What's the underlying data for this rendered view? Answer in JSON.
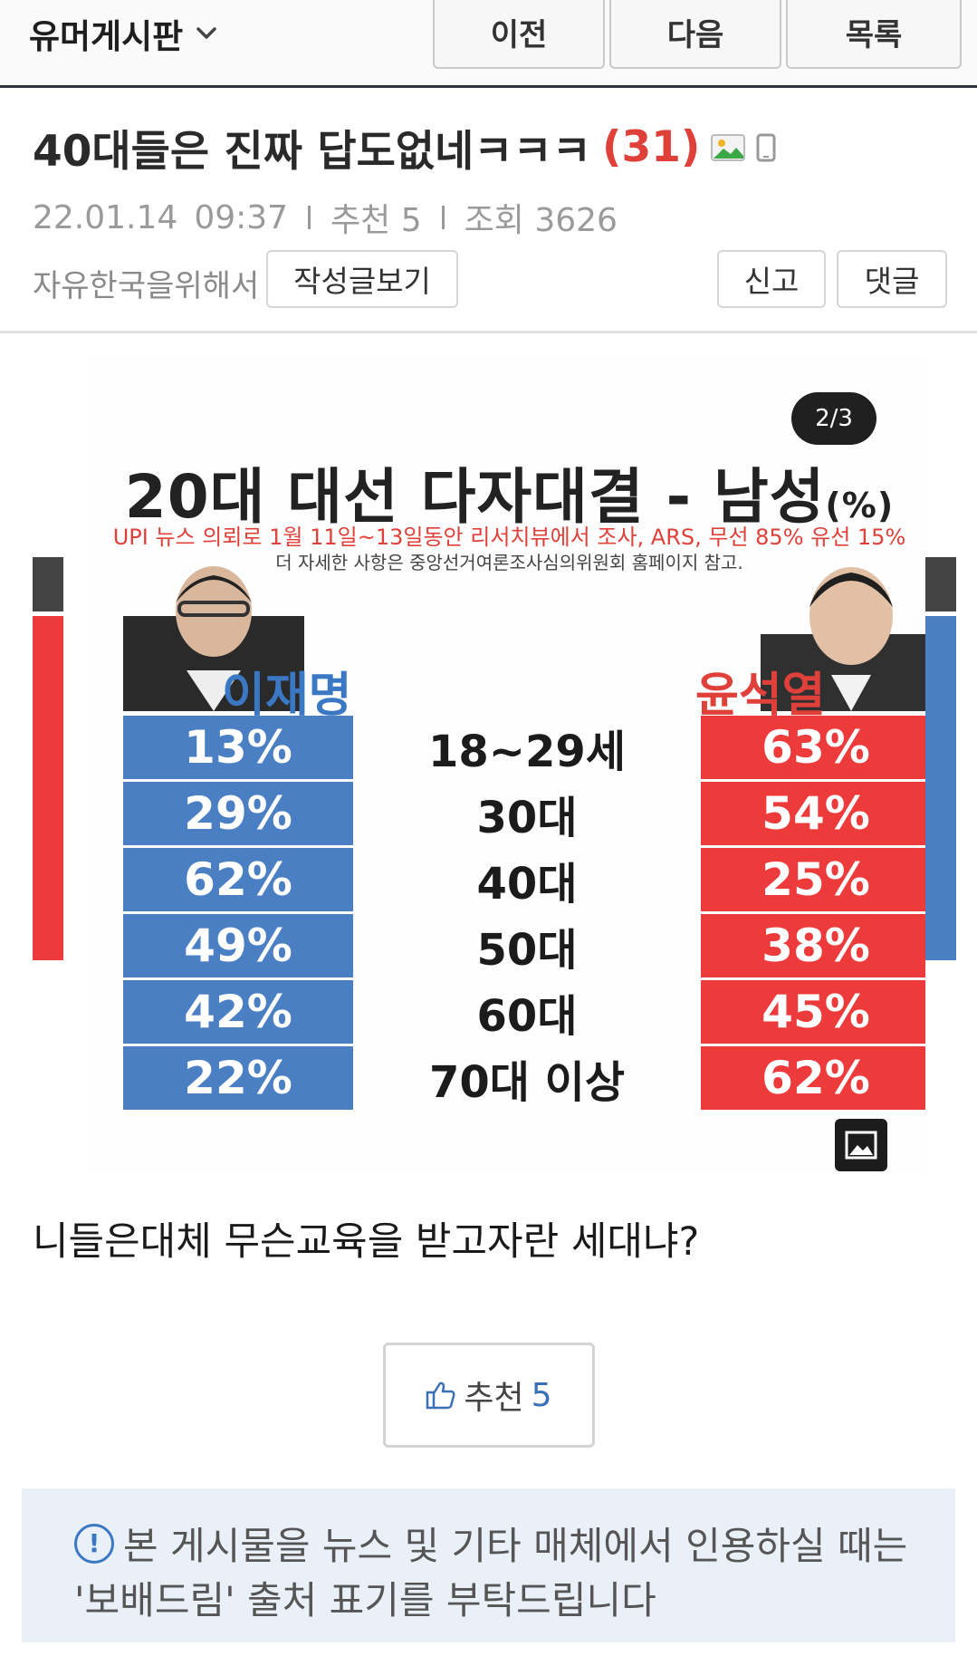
{
  "topbar": {
    "board_name": "유머게시판",
    "prev_label": "이전",
    "next_label": "다음",
    "list_label": "목록"
  },
  "post": {
    "title": "40대들은 진짜 답도없네ㅋㅋㅋ",
    "comment_count": "(31)",
    "date": "22.01.14",
    "time": "09:37",
    "recommend_meta": "추천 5",
    "views_meta": "조회 3626",
    "author": "자유한국을위해서",
    "view_posts_label": "작성글보기",
    "report_label": "신고",
    "comment_label": "댓글",
    "body": "니들은대체 무슨교육을 받고자란 세대냐?"
  },
  "viewer": {
    "counter": "2/3",
    "image": {
      "title": "20대 대선 다자대결 - 남성",
      "title_unit": "(%)",
      "subtitle": "UPI 뉴스 의뢰로 1월 11일~13일동안 리서치뷰에서 조사, ARS, 무선 85% 유선 15%",
      "note": "더 자세한 사항은 중앙선거여론조사심의위원회 홈페이지 참고.",
      "left_candidate": "이재명",
      "right_candidate": "윤석열"
    }
  },
  "chart_data": {
    "type": "table",
    "title": "20대 대선 다자대결 - 남성(%)",
    "categories": [
      "18~29세",
      "30대",
      "40대",
      "50대",
      "60대",
      "70대 이상"
    ],
    "series": [
      {
        "name": "이재명",
        "values": [
          "13%",
          "29%",
          "62%",
          "49%",
          "42%",
          "22%"
        ]
      },
      {
        "name": "윤석열",
        "values": [
          "63%",
          "54%",
          "25%",
          "38%",
          "45%",
          "62%"
        ]
      }
    ]
  },
  "recommend": {
    "label": "추천",
    "count": "5"
  },
  "notice": {
    "line1": "본 게시물을 뉴스 및 기타 매체에서 인용하실 때는",
    "line2": "'보배드림' 출처 표기를 부탁드립니다"
  },
  "colors": {
    "accent_red": "#e0403a",
    "left_blue": "#4b7fc4",
    "right_red": "#ec3b3a",
    "notice_bg": "#e9f0f8"
  }
}
